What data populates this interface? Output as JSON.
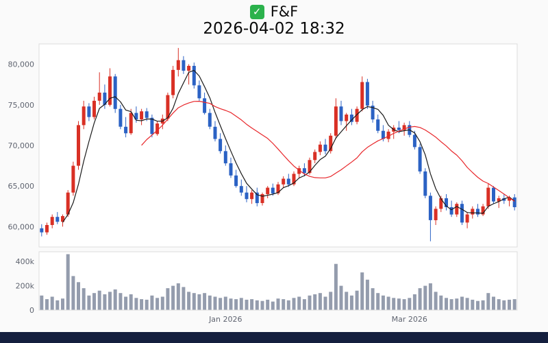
{
  "header": {
    "ticker": "F&F",
    "timestamp": "2026-04-02 18:32",
    "check_glyph": "✓"
  },
  "colors": {
    "up": "#d93025",
    "down": "#2b62c4",
    "ma_fast": "#1a1a1a",
    "ma_slow": "#e8262a",
    "volume": "#949cad",
    "panel_fill": "#ffffff",
    "panel_border": "#dcdcdc",
    "bottom_bar": "#141f3e",
    "axis_text": "#5f6470",
    "check_bg": "#2bb24c"
  },
  "chart_data": {
    "type": "candlestick+volume",
    "title": "F&F",
    "subtitle": "2026-04-02 18:32",
    "legend_position": "none",
    "grid": false,
    "price_axis": {
      "ylim": [
        57500,
        82500
      ],
      "ticks": [
        60000,
        65000,
        70000,
        75000,
        80000
      ],
      "tick_labels": [
        "60,000",
        "65,000",
        "70,000",
        "75,000",
        "80,000"
      ]
    },
    "volume_axis": {
      "ylim": [
        0,
        480000
      ],
      "ticks": [
        0,
        200000,
        400000
      ],
      "tick_labels": [
        "0",
        "200k",
        "400k"
      ]
    },
    "x_axis": {
      "ticks": [
        {
          "index": 35,
          "label": "Jan 2026"
        },
        {
          "index": 70,
          "label": "Mar 2026"
        }
      ]
    },
    "moving_averages": [
      {
        "name": "MA5",
        "period": 5,
        "color_key": "ma_fast"
      },
      {
        "name": "MA20",
        "period": 20,
        "color_key": "ma_slow"
      }
    ],
    "candle_format": [
      "open",
      "high",
      "low",
      "close",
      "volume"
    ],
    "candles": [
      [
        59800,
        60300,
        58800,
        59300,
        120000
      ],
      [
        59300,
        60500,
        59000,
        60200,
        90000
      ],
      [
        60200,
        61500,
        59800,
        61200,
        110000
      ],
      [
        61200,
        61800,
        60300,
        60600,
        80000
      ],
      [
        60600,
        61500,
        60000,
        61300,
        95000
      ],
      [
        61500,
        64500,
        61200,
        64200,
        460000
      ],
      [
        64200,
        68000,
        63800,
        67500,
        280000
      ],
      [
        67500,
        73000,
        67000,
        72500,
        230000
      ],
      [
        72500,
        75500,
        72000,
        74800,
        180000
      ],
      [
        74800,
        75200,
        73000,
        73500,
        120000
      ],
      [
        73500,
        76000,
        73200,
        75500,
        140000
      ],
      [
        75500,
        79000,
        75000,
        76500,
        160000
      ],
      [
        76500,
        77500,
        74500,
        75000,
        130000
      ],
      [
        75000,
        79500,
        74800,
        78500,
        150000
      ],
      [
        78500,
        78800,
        74000,
        74500,
        170000
      ],
      [
        74500,
        75000,
        72000,
        72300,
        140000
      ],
      [
        72300,
        73500,
        71000,
        71500,
        110000
      ],
      [
        71500,
        74500,
        71300,
        74000,
        130000
      ],
      [
        74000,
        74800,
        72800,
        73200,
        100000
      ],
      [
        73200,
        74500,
        72500,
        74200,
        90000
      ],
      [
        74200,
        74600,
        73000,
        73400,
        85000
      ],
      [
        73400,
        73800,
        71000,
        71400,
        120000
      ],
      [
        71400,
        73000,
        71200,
        72700,
        100000
      ],
      [
        72700,
        73800,
        72000,
        73300,
        110000
      ],
      [
        73300,
        76500,
        73000,
        76200,
        180000
      ],
      [
        76200,
        79800,
        75800,
        79300,
        200000
      ],
      [
        79300,
        82000,
        78500,
        80500,
        220000
      ],
      [
        80500,
        81000,
        78800,
        79200,
        190000
      ],
      [
        79200,
        80000,
        77500,
        79800,
        150000
      ],
      [
        79800,
        80200,
        77000,
        77400,
        140000
      ],
      [
        77400,
        78000,
        75500,
        75800,
        130000
      ],
      [
        75800,
        76500,
        73800,
        74000,
        140000
      ],
      [
        74000,
        74500,
        72000,
        72300,
        120000
      ],
      [
        72300,
        73000,
        70500,
        70800,
        110000
      ],
      [
        70800,
        71500,
        69000,
        69300,
        100000
      ],
      [
        69300,
        70000,
        67500,
        67800,
        110000
      ],
      [
        67800,
        68500,
        66000,
        66300,
        95000
      ],
      [
        66300,
        67000,
        64800,
        65000,
        90000
      ],
      [
        65000,
        65800,
        63800,
        64200,
        100000
      ],
      [
        64200,
        65000,
        63000,
        63400,
        85000
      ],
      [
        63400,
        64500,
        62800,
        64200,
        90000
      ],
      [
        64200,
        64800,
        62500,
        62900,
        80000
      ],
      [
        62900,
        64200,
        62600,
        64000,
        75000
      ],
      [
        64000,
        65000,
        63500,
        64800,
        85000
      ],
      [
        64800,
        65300,
        63800,
        64100,
        70000
      ],
      [
        64100,
        65500,
        63900,
        65200,
        95000
      ],
      [
        65200,
        66200,
        64800,
        65900,
        90000
      ],
      [
        65900,
        66500,
        64900,
        65200,
        80000
      ],
      [
        65200,
        66800,
        65000,
        66500,
        100000
      ],
      [
        66500,
        67500,
        66000,
        67200,
        110000
      ],
      [
        67200,
        67800,
        66200,
        66600,
        90000
      ],
      [
        66600,
        68500,
        66400,
        68200,
        120000
      ],
      [
        68200,
        69500,
        67800,
        69200,
        130000
      ],
      [
        69200,
        70500,
        68800,
        70100,
        140000
      ],
      [
        70100,
        70800,
        68900,
        69300,
        110000
      ],
      [
        69300,
        71500,
        69000,
        71200,
        150000
      ],
      [
        71200,
        75800,
        70800,
        74800,
        380000
      ],
      [
        74800,
        75500,
        72500,
        73000,
        200000
      ],
      [
        73000,
        74000,
        71800,
        73800,
        150000
      ],
      [
        73800,
        74500,
        72500,
        72900,
        120000
      ],
      [
        72900,
        74800,
        72600,
        74500,
        160000
      ],
      [
        74500,
        78500,
        74200,
        77800,
        310000
      ],
      [
        77800,
        78200,
        74500,
        74900,
        250000
      ],
      [
        74900,
        75500,
        72800,
        73200,
        180000
      ],
      [
        73200,
        73800,
        71500,
        71800,
        140000
      ],
      [
        71800,
        72500,
        70500,
        70800,
        120000
      ],
      [
        70800,
        72000,
        70400,
        71700,
        110000
      ],
      [
        71700,
        72500,
        70800,
        72200,
        100000
      ],
      [
        72200,
        73000,
        71500,
        71900,
        95000
      ],
      [
        71900,
        72800,
        71200,
        72500,
        90000
      ],
      [
        72500,
        73000,
        71000,
        71300,
        100000
      ],
      [
        71300,
        71800,
        69500,
        69800,
        130000
      ],
      [
        69800,
        70200,
        66500,
        66800,
        180000
      ],
      [
        66800,
        67200,
        63500,
        63800,
        200000
      ],
      [
        63800,
        64200,
        58200,
        60800,
        220000
      ],
      [
        60800,
        62500,
        60200,
        62200,
        150000
      ],
      [
        62200,
        63800,
        61800,
        63500,
        120000
      ],
      [
        63500,
        64000,
        62000,
        62400,
        100000
      ],
      [
        62400,
        63200,
        61200,
        61500,
        90000
      ],
      [
        61500,
        63000,
        61200,
        62800,
        95000
      ],
      [
        62800,
        63200,
        60200,
        60500,
        110000
      ],
      [
        60500,
        61800,
        59800,
        61500,
        100000
      ],
      [
        61500,
        62500,
        61000,
        62200,
        85000
      ],
      [
        62200,
        62800,
        61200,
        61500,
        75000
      ],
      [
        61500,
        62800,
        61300,
        62500,
        80000
      ],
      [
        62500,
        65300,
        62200,
        64800,
        140000
      ],
      [
        64800,
        65000,
        62800,
        63100,
        110000
      ],
      [
        63100,
        63800,
        62300,
        63500,
        90000
      ],
      [
        63500,
        64000,
        62800,
        63200,
        80000
      ],
      [
        63200,
        63800,
        62500,
        63600,
        85000
      ],
      [
        63600,
        64000,
        62000,
        62400,
        90000
      ]
    ]
  }
}
